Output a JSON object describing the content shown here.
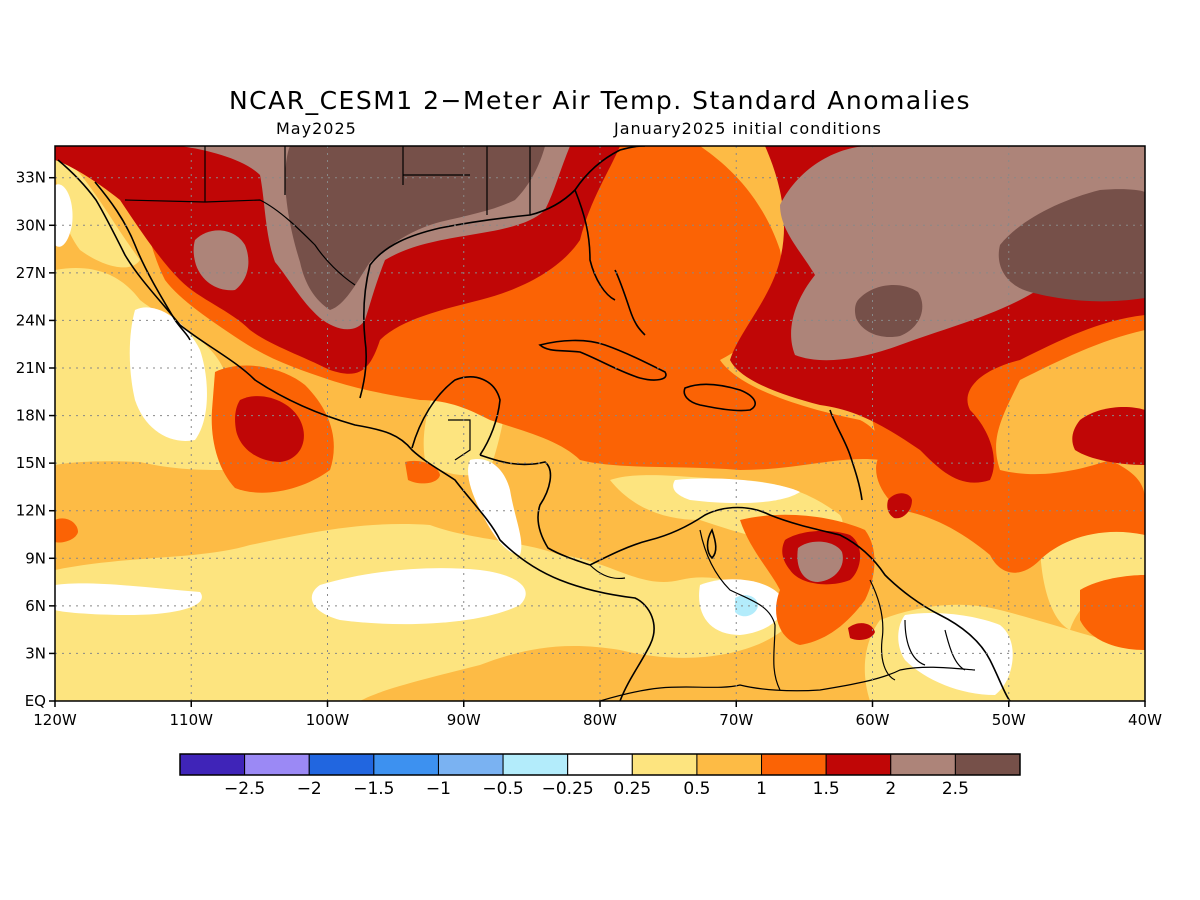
{
  "title": "NCAR_CESM1 2−Meter Air Temp. Standard Anomalies",
  "subtitle_left": "May2025",
  "subtitle_right": "January2025 initial conditions",
  "map": {
    "lon_range": [
      -120,
      -40
    ],
    "lat_range": [
      0,
      35
    ],
    "x_ticks": [
      "120W",
      "110W",
      "100W",
      "90W",
      "80W",
      "70W",
      "60W",
      "50W",
      "40W"
    ],
    "y_ticks": [
      "EQ",
      "3N",
      "6N",
      "9N",
      "12N",
      "15N",
      "18N",
      "21N",
      "24N",
      "27N",
      "30N",
      "33N"
    ],
    "gridlines": "dotted"
  },
  "colorbar": {
    "colors": [
      "#3f24b8",
      "#9b89f5",
      "#2166e0",
      "#3d91f0",
      "#7ab2f2",
      "#b3ecfb",
      "#ffffff",
      "#fde47f",
      "#fdbb45",
      "#fb6305",
      "#c00606",
      "#ad8479",
      "#765049"
    ],
    "labels": [
      "−2.5",
      "−2",
      "−1.5",
      "−1",
      "−0.5",
      "−0.25",
      "0.25",
      "0.5",
      "1",
      "1.5",
      "2",
      "2.5"
    ]
  }
}
